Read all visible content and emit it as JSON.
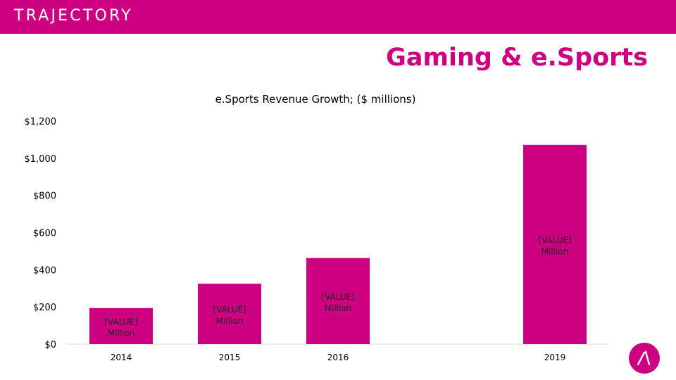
{
  "brand": {
    "logo_text": "TRAJECTORY",
    "accent": "#cc0080"
  },
  "slide": {
    "heading": "Gaming & e.Sports"
  },
  "chart_data": {
    "type": "bar",
    "title": "e.Sports Revenue Growth; ($ millions)",
    "categories": [
      "2014",
      "2015",
      "2016",
      "2019"
    ],
    "values": [
      194,
      325,
      463,
      1072
    ],
    "data_labels": [
      "[VALUE] Million",
      "[VALUE] Million",
      "[VALUE] Million",
      "[VALUE] Million"
    ],
    "y_ticks": [
      0,
      200,
      400,
      600,
      800,
      1000,
      1200
    ],
    "y_tick_labels": [
      "$0",
      "$200",
      "$400",
      "$600",
      "$800",
      "$1,000",
      "$1,200"
    ],
    "ylim": [
      0,
      1200
    ],
    "xlabel": "",
    "ylabel": "",
    "grid": false,
    "bar_color": "#cc0080"
  }
}
